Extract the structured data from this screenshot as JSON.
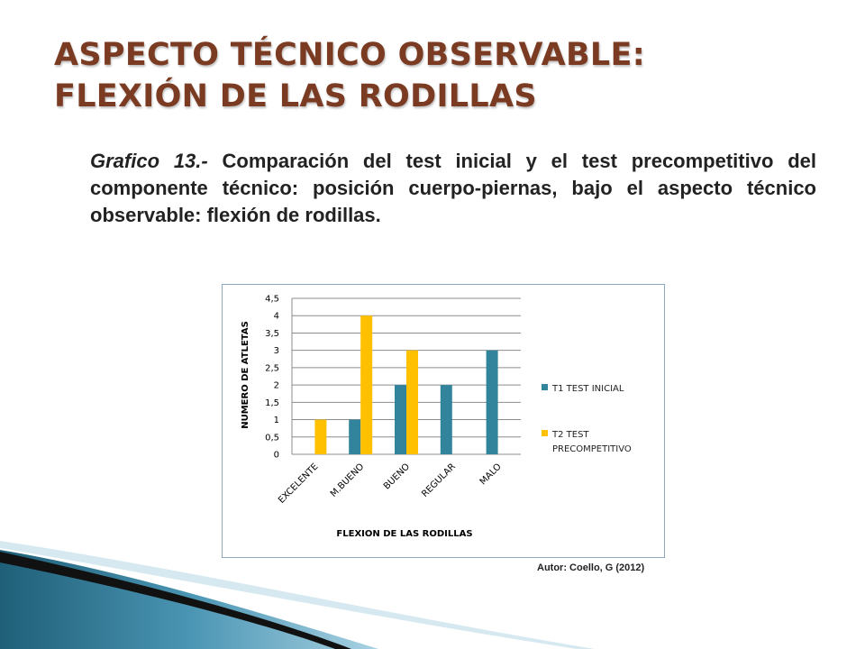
{
  "slide": {
    "title_line1": "ASPECTO TÉCNICO OBSERVABLE:",
    "title_line2": "FLEXIÓN DE LAS RODILLAS",
    "caption_label": "Grafico 13.-",
    "caption_text": "Comparación del test inicial  y el test precompetitivo del componente técnico: posición cuerpo-piernas, bajo el aspecto técnico observable: flexión de rodillas.",
    "author": "Autor: Coello, G (2012)"
  },
  "colors": {
    "title": "#7b3b22",
    "series1": "#31849b",
    "series2": "#ffc000"
  },
  "chart_data": {
    "type": "bar",
    "categories": [
      "EXCELENTE",
      "M.BUENO",
      "BUENO",
      "REGULAR",
      "MALO"
    ],
    "series": [
      {
        "name": "T1  TEST INICIAL",
        "values": [
          0,
          1,
          2,
          2,
          3
        ]
      },
      {
        "name": "T2  TEST PRECOMPETITIVO",
        "values": [
          1,
          4,
          3,
          0,
          0
        ]
      }
    ],
    "xlabel": "FLEXION DE LAS RODILLAS",
    "ylabel": "NUMERO DE ATLETAS",
    "ylim": [
      0,
      4.5
    ],
    "yticks": [
      "0",
      "0,5",
      "1",
      "1,5",
      "2",
      "2,5",
      "3",
      "3,5",
      "4",
      "4,5"
    ],
    "grid": true,
    "legend": "right"
  }
}
